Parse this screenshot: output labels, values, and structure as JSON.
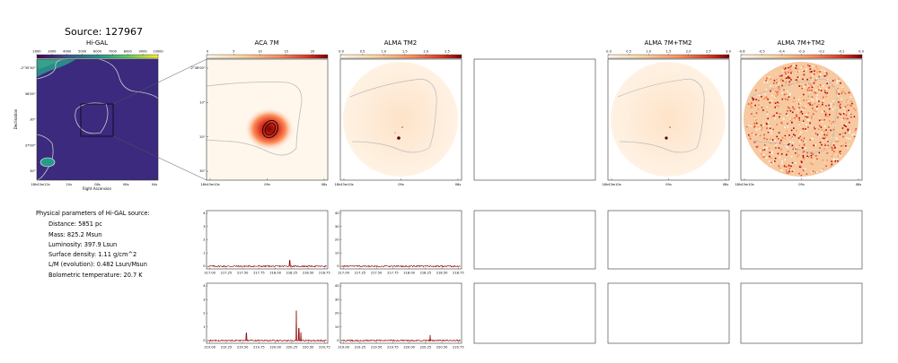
{
  "source_title": "Source: 127967",
  "panels": {
    "higal": {
      "title": "Hi-GAL",
      "xlabel": "Right Ascension",
      "ylabel": "Declination",
      "colorbar_ticks": [
        "2000",
        "3000",
        "4000",
        "5000",
        "6000",
        "7000",
        "8000",
        "9000",
        "10000"
      ],
      "x_ticks": [
        "18h43m12s",
        "10s",
        "08s",
        "06s",
        "04s"
      ],
      "y_ticks": [
        "-2°35'30\"",
        "36'00\"",
        "30\"",
        "37'00\"",
        "30\""
      ]
    },
    "aca7m": {
      "title": "ACA 7M",
      "colorbar_ticks": [
        "0",
        "5",
        "10",
        "15",
        "20"
      ],
      "x_ticks": [
        "18h43m10s",
        "09s",
        "08s"
      ],
      "y_ticks": [
        "-2°36'00\"",
        "10\"",
        "20\"",
        "30\""
      ]
    },
    "tm2": {
      "title": "ALMA TM2",
      "colorbar_ticks": [
        "0.0",
        "0.5",
        "1.0",
        "1.5",
        "2.0",
        "2.5"
      ],
      "x_ticks": [
        "18h43m10s",
        "09s",
        "08s"
      ]
    },
    "combo": {
      "title": "ALMA 7M+TM2",
      "colorbar_ticks": [
        "0.0",
        "0.5",
        "1.0",
        "1.5",
        "2.0",
        "2.5",
        "3.0"
      ],
      "x_ticks": [
        "18h43m10s",
        "09s",
        "08s"
      ]
    },
    "combo_residual": {
      "title": "ALMA 7M+TM2",
      "colorbar_ticks": [
        "-0.6",
        "-0.5",
        "-0.4",
        "-0.3",
        "-0.2",
        "-0.1",
        "0.0"
      ],
      "x_ticks": [
        "18h43m10s",
        "09s",
        "08s"
      ]
    }
  },
  "parameters": {
    "heading": "Physical parameters of Hi-GAL source:",
    "rows": [
      "Distance: 5851 pc",
      "Mass: 825.2 Msun",
      "Luminosity: 397.9 Lsun",
      "Surface density: 1.11 g/cm^2",
      "L/M (evolution): 0.482 Lsun/Msun",
      "Bolometric temperature: 20.7 K"
    ]
  },
  "chart_data": [
    {
      "type": "line",
      "panel": "aca7m-spectrum-1",
      "xlim": [
        216.95,
        218.8
      ],
      "ylim": [
        -0.2,
        4.2
      ],
      "x_ticks": [
        "217.00",
        "217.25",
        "217.50",
        "217.75",
        "218.00",
        "218.25",
        "218.50",
        "218.75"
      ],
      "y_ticks": [
        "0",
        "1",
        "2",
        "3",
        "4"
      ],
      "baseline": 0.0,
      "peaks": [
        {
          "x": 218.22,
          "y": 0.45
        }
      ]
    },
    {
      "type": "line",
      "panel": "tm2-spectrum-1",
      "xlim": [
        216.95,
        218.8
      ],
      "ylim": [
        -2,
        42
      ],
      "x_ticks": [
        "217.00",
        "217.25",
        "217.50",
        "217.75",
        "218.00",
        "218.25",
        "218.50",
        "218.75"
      ],
      "y_ticks": [
        "0",
        "10",
        "20",
        "30",
        "40"
      ],
      "baseline": 0.0,
      "peaks": []
    },
    {
      "type": "line",
      "panel": "aca7m-spectrum-2",
      "xlim": [
        218.95,
        220.8
      ],
      "ylim": [
        -0.2,
        4.2
      ],
      "x_ticks": [
        "219.00",
        "219.25",
        "219.50",
        "219.75",
        "220.00",
        "220.25",
        "220.50",
        "220.75"
      ],
      "y_ticks": [
        "0",
        "1",
        "2",
        "3",
        "4"
      ],
      "baseline": 0.0,
      "peaks": [
        {
          "x": 219.56,
          "y": 0.55
        },
        {
          "x": 220.32,
          "y": 2.2
        },
        {
          "x": 220.36,
          "y": 0.9
        },
        {
          "x": 220.39,
          "y": 0.6
        }
      ]
    },
    {
      "type": "line",
      "panel": "tm2-spectrum-2",
      "xlim": [
        218.95,
        220.8
      ],
      "ylim": [
        -2,
        42
      ],
      "x_ticks": [
        "219.00",
        "219.25",
        "219.50",
        "219.75",
        "220.00",
        "220.25",
        "220.50",
        "220.75"
      ],
      "y_ticks": [
        "0",
        "10",
        "20",
        "30",
        "40"
      ],
      "baseline": 0.0,
      "peaks": [
        {
          "x": 220.32,
          "y": 4.0
        }
      ]
    }
  ],
  "colors": {
    "spectrum": "#8b0000",
    "contour": "#bbbbbb",
    "frame": "#333333"
  }
}
